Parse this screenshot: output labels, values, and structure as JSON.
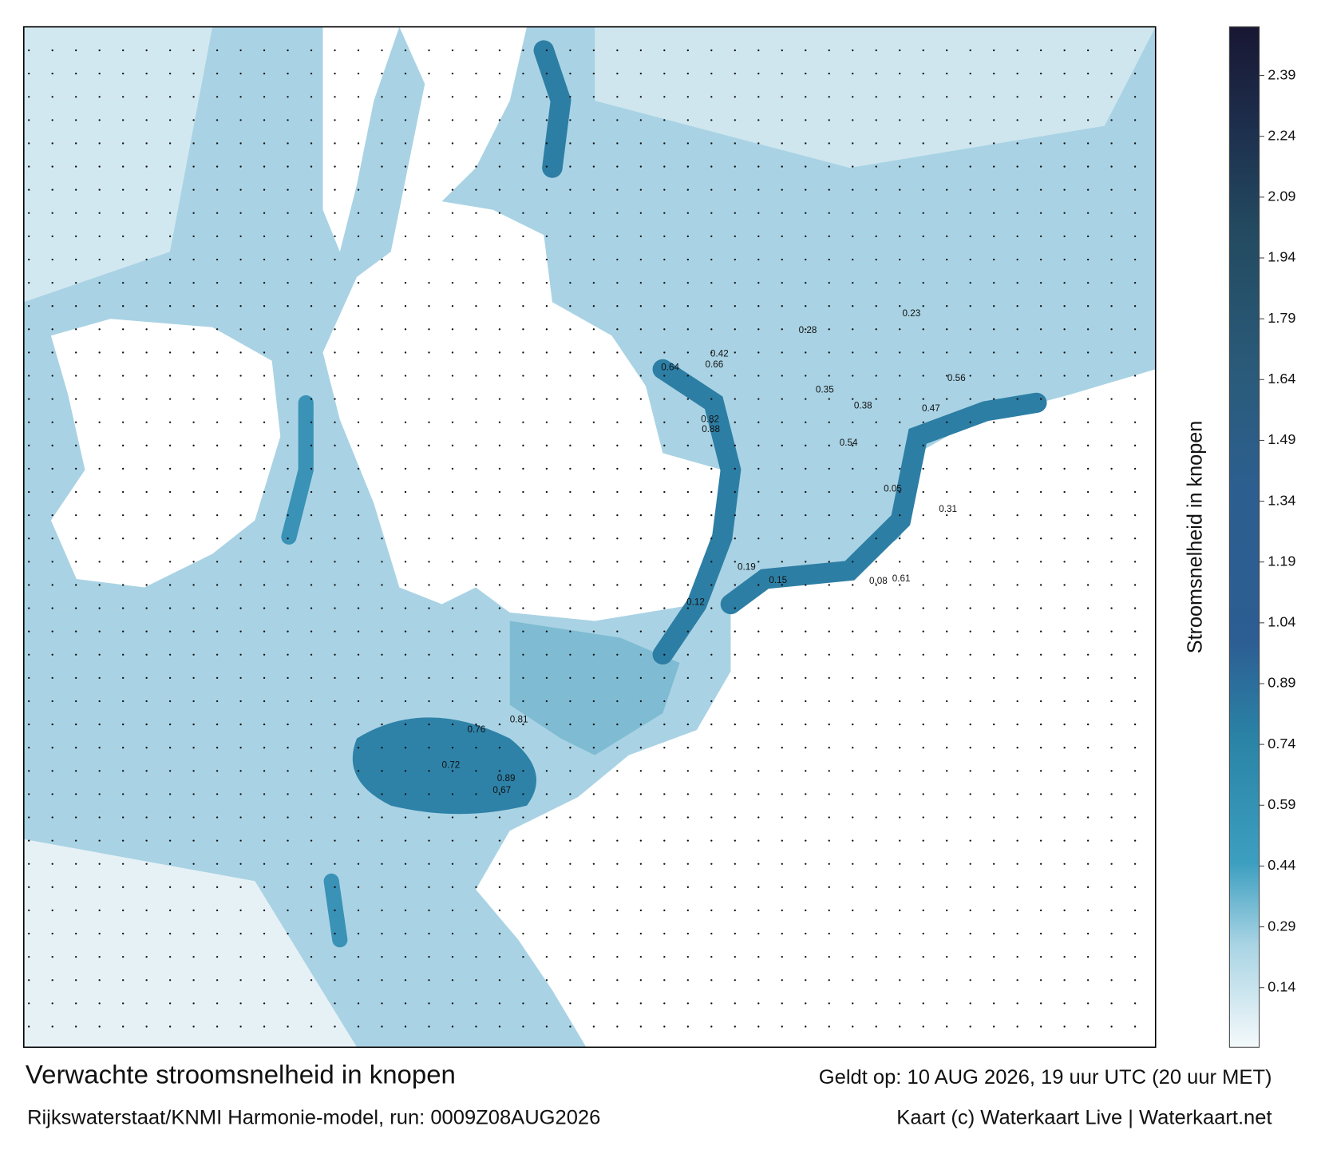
{
  "title": "Verwachte stroomsnelheid in knopen",
  "subtitle": "Rijkswaterstaat/KNMI Harmonie-model, run: 0009Z08AUG2026",
  "valid_time": "Geldt op: 10 AUG 2026, 19 uur UTC (20 uur MET)",
  "credit": "Kaart (c) Waterkaart Live | Waterkaart.net",
  "colorbar": {
    "label": "Stroomsnelheid in knopen",
    "ticks": [
      0.14,
      0.29,
      0.44,
      0.59,
      0.74,
      0.89,
      1.04,
      1.19,
      1.34,
      1.49,
      1.64,
      1.79,
      1.94,
      2.09,
      2.24,
      2.39
    ]
  },
  "speed_labels": [
    0.82,
    0.88,
    0.72,
    0.89,
    0.67,
    0.76,
    0.81,
    0.66,
    0.64,
    0.56,
    0.42,
    0.38,
    0.35,
    0.28,
    0.23,
    0.19,
    0.15,
    0.12,
    0.08,
    0.05,
    0.31,
    0.47,
    0.54,
    0.61
  ]
}
